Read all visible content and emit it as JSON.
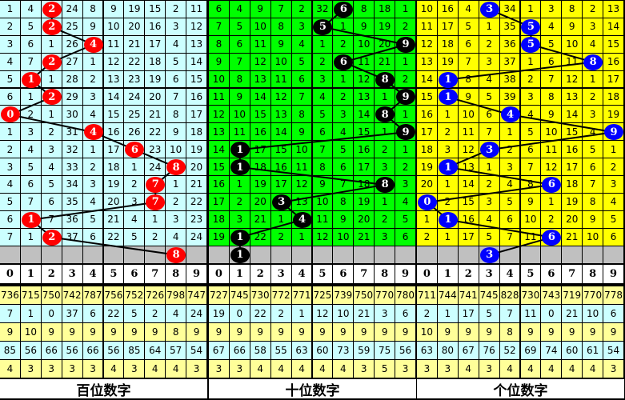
{
  "header_digits": [
    "0",
    "1",
    "2",
    "3",
    "4",
    "5",
    "6",
    "7",
    "8",
    "9"
  ],
  "colors": {
    "stat_a": "#ffff99",
    "stat_b": "#ccffff",
    "gray": "#c0c0c0"
  },
  "sections": [
    {
      "label": "百位数字",
      "bg": "#ccffff",
      "ball_color": "#ff0000",
      "balls": [
        2,
        2,
        4,
        2,
        1,
        2,
        0,
        4,
        6,
        8,
        7,
        7,
        1,
        2
      ],
      "prediction": 8,
      "rows": [
        [
          1,
          4,
          2,
          24,
          8,
          9,
          19,
          15,
          2,
          11
        ],
        [
          2,
          5,
          2,
          25,
          9,
          10,
          20,
          16,
          3,
          12
        ],
        [
          3,
          6,
          1,
          26,
          4,
          11,
          21,
          17,
          4,
          13
        ],
        [
          4,
          7,
          2,
          27,
          1,
          12,
          22,
          18,
          5,
          14
        ],
        [
          5,
          1,
          1,
          28,
          2,
          13,
          23,
          19,
          6,
          15
        ],
        [
          6,
          1,
          2,
          29,
          3,
          14,
          24,
          20,
          7,
          16
        ],
        [
          0,
          2,
          1,
          30,
          4,
          15,
          25,
          21,
          8,
          17
        ],
        [
          1,
          3,
          2,
          31,
          4,
          16,
          26,
          22,
          9,
          18
        ],
        [
          2,
          4,
          3,
          32,
          1,
          17,
          6,
          23,
          10,
          19
        ],
        [
          3,
          5,
          4,
          33,
          2,
          18,
          1,
          24,
          8,
          20
        ],
        [
          4,
          6,
          5,
          34,
          3,
          19,
          2,
          7,
          1,
          21
        ],
        [
          5,
          7,
          6,
          35,
          4,
          20,
          3,
          7,
          2,
          22
        ],
        [
          6,
          1,
          7,
          36,
          5,
          21,
          4,
          1,
          3,
          23
        ],
        [
          7,
          1,
          2,
          37,
          6,
          22,
          5,
          2,
          4,
          24
        ]
      ],
      "stats": [
        [
          736,
          715,
          750,
          742,
          787,
          756,
          752,
          726,
          798,
          747
        ],
        [
          7,
          1,
          0,
          37,
          6,
          22,
          5,
          2,
          4,
          24
        ],
        [
          9,
          10,
          9,
          9,
          9,
          9,
          9,
          9,
          8,
          9
        ],
        [
          85,
          56,
          66,
          56,
          66,
          56,
          85,
          64,
          57,
          54
        ],
        [
          4,
          3,
          3,
          3,
          3,
          4,
          3,
          4,
          4,
          3
        ]
      ]
    },
    {
      "label": "十位数字",
      "bg": "#00ff00",
      "ball_color": "#000000",
      "balls": [
        6,
        5,
        9,
        6,
        8,
        9,
        8,
        9,
        1,
        1,
        8,
        3,
        4,
        1
      ],
      "prediction": 1,
      "rows": [
        [
          6,
          4,
          9,
          7,
          2,
          32,
          6,
          8,
          18,
          1
        ],
        [
          7,
          5,
          10,
          8,
          3,
          5,
          1,
          9,
          19,
          2
        ],
        [
          8,
          6,
          11,
          9,
          4,
          1,
          2,
          10,
          20,
          9
        ],
        [
          9,
          7,
          12,
          10,
          5,
          2,
          6,
          11,
          21,
          1
        ],
        [
          10,
          8,
          13,
          11,
          6,
          3,
          1,
          12,
          8,
          2
        ],
        [
          11,
          9,
          14,
          12,
          7,
          4,
          2,
          13,
          1,
          9
        ],
        [
          12,
          10,
          15,
          13,
          8,
          5,
          3,
          14,
          8,
          1
        ],
        [
          13,
          11,
          16,
          14,
          9,
          6,
          4,
          15,
          1,
          9
        ],
        [
          14,
          1,
          17,
          15,
          10,
          7,
          5,
          16,
          2,
          1
        ],
        [
          15,
          1,
          18,
          16,
          11,
          8,
          6,
          17,
          3,
          2
        ],
        [
          16,
          1,
          19,
          17,
          12,
          9,
          7,
          18,
          8,
          3
        ],
        [
          17,
          2,
          20,
          3,
          13,
          10,
          8,
          19,
          1,
          4
        ],
        [
          18,
          3,
          21,
          1,
          4,
          11,
          9,
          20,
          2,
          5
        ],
        [
          19,
          1,
          22,
          2,
          1,
          12,
          10,
          21,
          3,
          6
        ]
      ],
      "stats": [
        [
          727,
          745,
          730,
          772,
          771,
          725,
          739,
          750,
          770,
          780
        ],
        [
          19,
          0,
          22,
          2,
          1,
          12,
          10,
          21,
          3,
          6
        ],
        [
          9,
          9,
          9,
          9,
          9,
          9,
          9,
          9,
          9,
          9
        ],
        [
          67,
          66,
          58,
          55,
          63,
          60,
          73,
          59,
          75,
          56
        ],
        [
          3,
          3,
          4,
          4,
          4,
          4,
          4,
          3,
          5,
          3
        ]
      ]
    },
    {
      "label": "个位数字",
      "bg": "#ffff00",
      "ball_color": "#0000ff",
      "balls": [
        3,
        5,
        5,
        8,
        1,
        1,
        4,
        9,
        3,
        1,
        6,
        0,
        1,
        6
      ],
      "prediction": 3,
      "rows": [
        [
          10,
          16,
          4,
          3,
          34,
          1,
          3,
          8,
          2,
          13
        ],
        [
          11,
          17,
          5,
          1,
          35,
          5,
          4,
          9,
          3,
          14
        ],
        [
          12,
          18,
          6,
          2,
          36,
          5,
          5,
          10,
          4,
          15
        ],
        [
          13,
          19,
          7,
          3,
          37,
          1,
          6,
          11,
          8,
          16
        ],
        [
          14,
          1,
          8,
          4,
          38,
          2,
          7,
          12,
          1,
          17
        ],
        [
          15,
          1,
          9,
          5,
          39,
          3,
          8,
          13,
          2,
          18
        ],
        [
          16,
          1,
          10,
          6,
          4,
          4,
          9,
          14,
          3,
          19
        ],
        [
          17,
          2,
          11,
          7,
          1,
          5,
          10,
          15,
          4,
          9
        ],
        [
          18,
          3,
          12,
          3,
          2,
          6,
          11,
          16,
          5,
          1
        ],
        [
          19,
          1,
          13,
          1,
          3,
          7,
          12,
          17,
          6,
          2
        ],
        [
          20,
          1,
          14,
          2,
          4,
          8,
          6,
          18,
          7,
          3
        ],
        [
          0,
          2,
          15,
          3,
          5,
          9,
          1,
          19,
          8,
          4
        ],
        [
          1,
          1,
          16,
          4,
          6,
          10,
          2,
          20,
          9,
          5
        ],
        [
          2,
          1,
          17,
          5,
          7,
          11,
          6,
          21,
          10,
          6
        ]
      ],
      "stats": [
        [
          711,
          744,
          741,
          745,
          828,
          730,
          743,
          719,
          770,
          778
        ],
        [
          2,
          1,
          17,
          5,
          7,
          11,
          0,
          21,
          10,
          6
        ],
        [
          10,
          9,
          9,
          9,
          8,
          9,
          9,
          9,
          9,
          9
        ],
        [
          63,
          80,
          67,
          76,
          52,
          69,
          74,
          60,
          61,
          54
        ],
        [
          3,
          3,
          4,
          3,
          4,
          4,
          4,
          4,
          4,
          3
        ]
      ]
    }
  ]
}
